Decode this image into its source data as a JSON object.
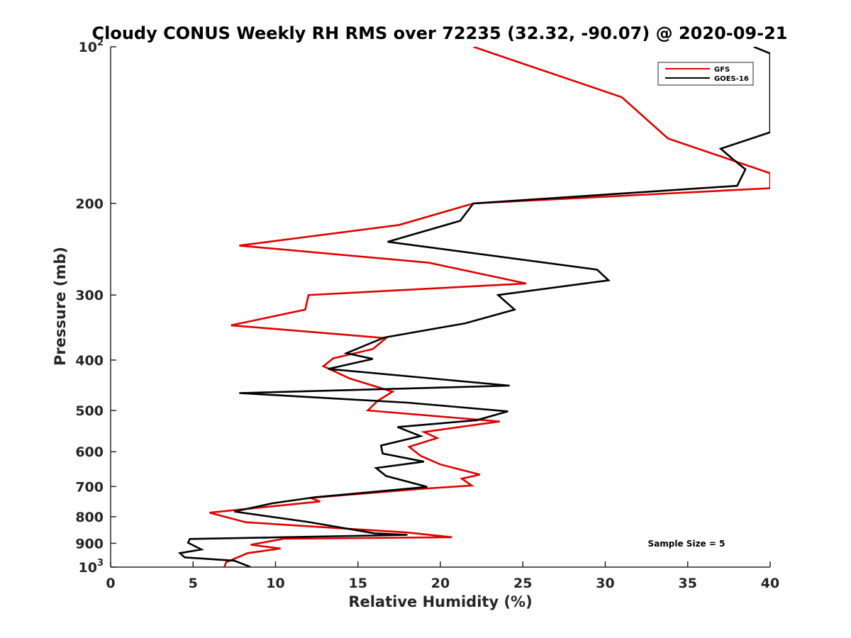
{
  "chart_data": {
    "type": "line",
    "title": "Cloudy CONUS Weekly RH RMS over 72235 (32.32, -90.07) @ 2020-09-21",
    "xlabel": "Relative Humidity (%)",
    "ylabel": "Pressure (mb)",
    "xlim": [
      0,
      40
    ],
    "ylim": [
      100,
      1000
    ],
    "yscale": "log",
    "yreversed": true,
    "x_ticks": [
      "0",
      "5",
      "10",
      "15",
      "20",
      "25",
      "30",
      "35",
      "40"
    ],
    "y_ticks": [
      {
        "value": 100,
        "label": "10",
        "sup": "2"
      },
      {
        "value": 200,
        "label": "200",
        "sup": ""
      },
      {
        "value": 300,
        "label": "300",
        "sup": ""
      },
      {
        "value": 400,
        "label": "400",
        "sup": ""
      },
      {
        "value": 500,
        "label": "500",
        "sup": ""
      },
      {
        "value": 600,
        "label": "600",
        "sup": ""
      },
      {
        "value": 700,
        "label": "700",
        "sup": ""
      },
      {
        "value": 800,
        "label": "800",
        "sup": ""
      },
      {
        "value": 900,
        "label": "900",
        "sup": ""
      },
      {
        "value": 1000,
        "label": "10",
        "sup": "3"
      }
    ],
    "legend_position": "top-right",
    "annotation": "Sample Size = 5",
    "series": [
      {
        "name": "GFS",
        "color": "#e00000",
        "points": [
          [
            22.0,
            100
          ],
          [
            31.0,
            125
          ],
          [
            33.8,
            150
          ],
          [
            40.0,
            175
          ],
          [
            40.0,
            187
          ],
          [
            22.0,
            200
          ],
          [
            17.5,
            220
          ],
          [
            7.8,
            241
          ],
          [
            19.3,
            260
          ],
          [
            25.2,
            285
          ],
          [
            12.0,
            300
          ],
          [
            11.8,
            320
          ],
          [
            7.3,
            343
          ],
          [
            16.7,
            363
          ],
          [
            15.9,
            381
          ],
          [
            13.5,
            397
          ],
          [
            12.9,
            411
          ],
          [
            14.5,
            434
          ],
          [
            17.1,
            460
          ],
          [
            16.2,
            479
          ],
          [
            15.6,
            500
          ],
          [
            23.6,
            525
          ],
          [
            19.0,
            550
          ],
          [
            19.8,
            565
          ],
          [
            18.1,
            587
          ],
          [
            18.8,
            611
          ],
          [
            20.0,
            635
          ],
          [
            22.4,
            664
          ],
          [
            21.3,
            676
          ],
          [
            21.9,
            697
          ],
          [
            19.2,
            706
          ],
          [
            12.1,
            736
          ],
          [
            12.7,
            748
          ],
          [
            6.0,
            786
          ],
          [
            8.2,
            820
          ],
          [
            18.0,
            858
          ],
          [
            20.7,
            876
          ],
          [
            10.5,
            882
          ],
          [
            8.5,
            906
          ],
          [
            10.3,
            921
          ],
          [
            8.3,
            940
          ],
          [
            7.0,
            979
          ],
          [
            6.9,
            1000
          ]
        ]
      },
      {
        "name": "GOES-16",
        "color": "#000000",
        "points": [
          [
            39.0,
            100
          ],
          [
            40.0,
            103
          ],
          [
            40.0,
            146
          ],
          [
            37.0,
            157
          ],
          [
            37.8,
            165
          ],
          [
            38.5,
            172
          ],
          [
            38.0,
            185
          ],
          [
            22.0,
            200
          ],
          [
            21.2,
            216
          ],
          [
            16.8,
            237
          ],
          [
            29.5,
            268
          ],
          [
            30.2,
            281
          ],
          [
            23.5,
            300
          ],
          [
            24.5,
            320
          ],
          [
            21.5,
            340
          ],
          [
            16.6,
            362
          ],
          [
            14.3,
            388
          ],
          [
            15.9,
            398
          ],
          [
            13.2,
            416
          ],
          [
            24.2,
            448
          ],
          [
            7.8,
            463
          ],
          [
            18.0,
            483
          ],
          [
            24.1,
            502
          ],
          [
            22.2,
            522
          ],
          [
            17.4,
            538
          ],
          [
            18.8,
            560
          ],
          [
            16.4,
            584
          ],
          [
            16.5,
            605
          ],
          [
            19.0,
            627
          ],
          [
            16.1,
            645
          ],
          [
            16.7,
            668
          ],
          [
            19.2,
            701
          ],
          [
            12.4,
            734
          ],
          [
            9.8,
            754
          ],
          [
            7.5,
            782
          ],
          [
            12.0,
            819
          ],
          [
            16.0,
            861
          ],
          [
            18.0,
            867
          ],
          [
            4.8,
            883
          ],
          [
            4.7,
            898
          ],
          [
            5.5,
            925
          ],
          [
            4.2,
            940
          ],
          [
            4.5,
            958
          ],
          [
            7.5,
            972
          ],
          [
            8.5,
            1000
          ]
        ]
      }
    ]
  }
}
